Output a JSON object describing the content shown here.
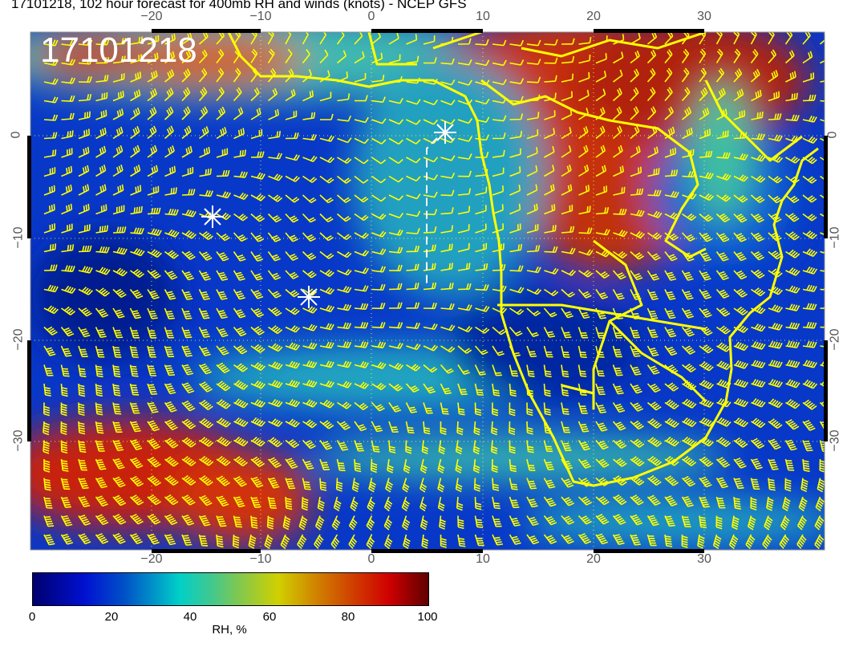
{
  "title": "17101218, 102 hour forecast for 400mb RH and winds (knots) - NCEP GFS",
  "map": {
    "timestamp_label": "17101218",
    "lon_ticks": [
      "−20",
      "−10",
      "0",
      "10",
      "20",
      "30"
    ],
    "lat_ticks": [
      "0",
      "−10",
      "−20",
      "−30"
    ],
    "lon_range": [
      -31,
      41
    ],
    "lat_range": [
      10,
      -40.5
    ],
    "coastline_color": "#ffff00",
    "barb_color": "#ffff00",
    "marker_color": "#ffffff"
  },
  "colorbar": {
    "ticks": [
      "0",
      "20",
      "40",
      "60",
      "80",
      "100"
    ],
    "label": "RH, %",
    "range": [
      0,
      100
    ],
    "colors": [
      "#00006e",
      "#0010d0",
      "#00d0c8",
      "#d0d000",
      "#d00000",
      "#600000"
    ]
  }
}
